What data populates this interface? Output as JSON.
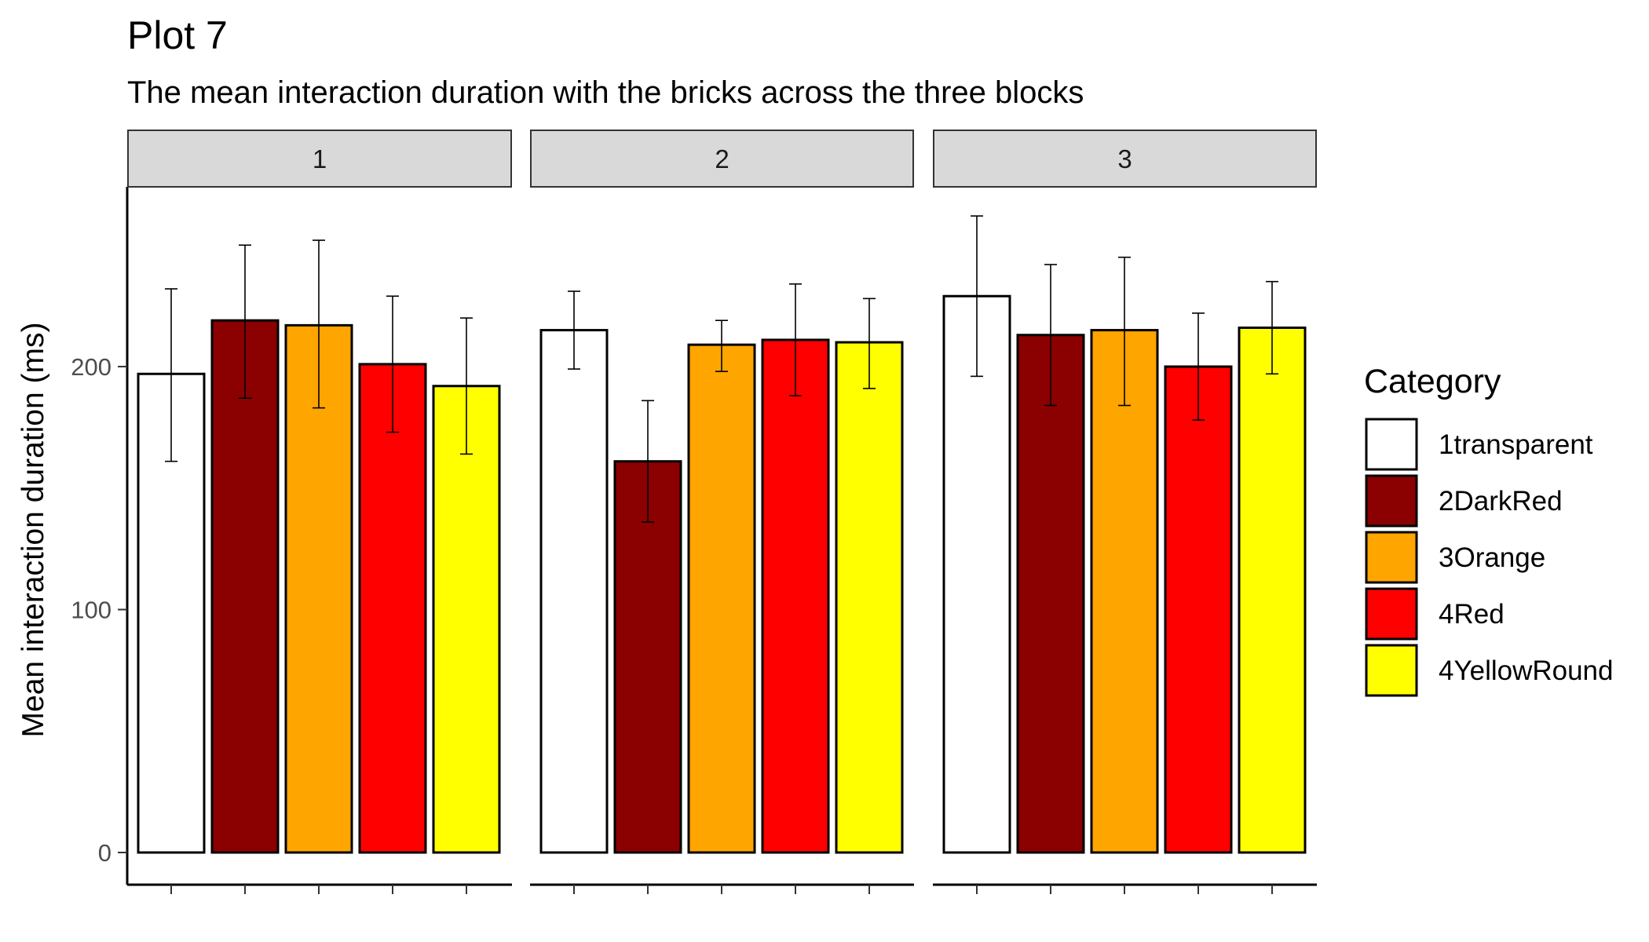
{
  "chart_data": {
    "type": "bar",
    "title": "Plot 7",
    "subtitle": "The mean interaction duration with the bricks across the three blocks",
    "ylabel": "Mean interaction duration (ms)",
    "xlabel": "",
    "ylim": [
      0,
      275
    ],
    "yticks": [
      0,
      100,
      200
    ],
    "grid": false,
    "legend_position": "right",
    "legend_title": "Category",
    "categories": [
      "1transparent",
      "2DarkRed",
      "3Orange",
      "4Red",
      "4YellowRound"
    ],
    "colors": [
      "#FFFFFF",
      "#8B0000",
      "#FFA500",
      "#FF0000",
      "#FFFF00"
    ],
    "facets": [
      {
        "label": "1",
        "values": [
          197,
          219,
          217,
          201,
          192
        ],
        "error_low": [
          161,
          187,
          183,
          173,
          164
        ],
        "error_high": [
          232,
          250,
          252,
          229,
          220
        ]
      },
      {
        "label": "2",
        "values": [
          215,
          161,
          209,
          211,
          210
        ],
        "error_low": [
          199,
          136,
          198,
          188,
          191
        ],
        "error_high": [
          231,
          186,
          219,
          234,
          228
        ]
      },
      {
        "label": "3",
        "values": [
          229,
          213,
          215,
          200,
          216
        ],
        "error_low": [
          196,
          184,
          184,
          178,
          197
        ],
        "error_high": [
          262,
          242,
          245,
          222,
          235
        ]
      }
    ]
  }
}
